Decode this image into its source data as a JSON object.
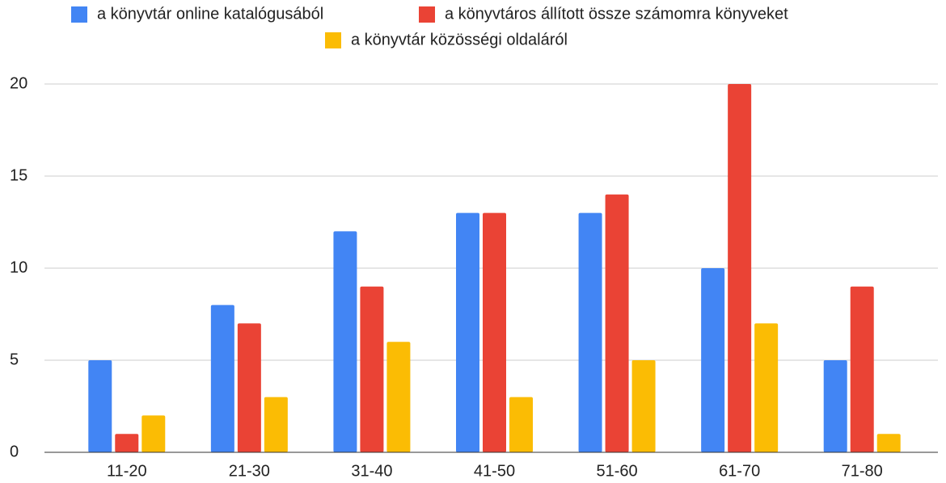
{
  "chart_data": {
    "type": "bar",
    "categories": [
      "11-20",
      "21-30",
      "31-40",
      "41-50",
      "51-60",
      "61-70",
      "71-80"
    ],
    "series": [
      {
        "name": "a könyvtár online katalógusából",
        "color": "#4285f4",
        "values": [
          5,
          8,
          12,
          13,
          13,
          10,
          5
        ]
      },
      {
        "name": "a könyvtáros állított össze számomra könyveket",
        "color": "#ea4335",
        "values": [
          1,
          7,
          9,
          13,
          14,
          20,
          9
        ]
      },
      {
        "name": "a könyvtár közösségi oldaláról",
        "color": "#fbbc04",
        "values": [
          2,
          3,
          6,
          3,
          5,
          7,
          1
        ]
      }
    ],
    "ylim": [
      0,
      20
    ],
    "yticks": [
      0,
      5,
      10,
      15,
      20
    ],
    "grid": true,
    "legend": "top"
  }
}
